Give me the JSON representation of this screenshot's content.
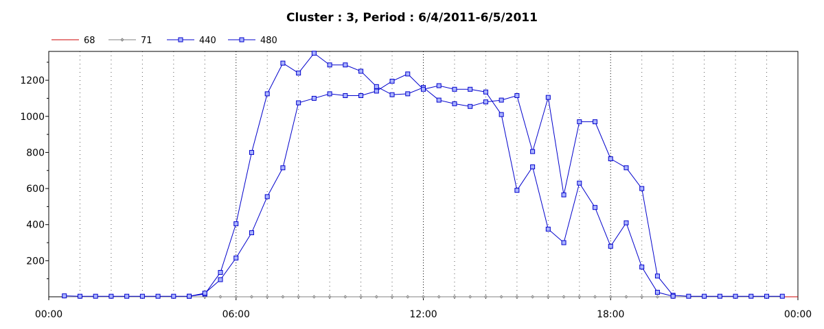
{
  "chart_data": {
    "type": "line",
    "title": "Cluster : 3, Period : 6/4/2011-6/5/2011",
    "xlabel": "",
    "ylabel": "",
    "x_tick_labels": [
      "00:00",
      "06:00",
      "12:00",
      "18:00",
      "00:00"
    ],
    "x_tick_hours": [
      0,
      6,
      12,
      18,
      24
    ],
    "x_range_hours": [
      0,
      24
    ],
    "y_ticks": [
      200,
      400,
      600,
      800,
      1000,
      1200
    ],
    "ylim": [
      0,
      1360
    ],
    "grid": "vertical dotted",
    "legend_position": "top-left",
    "series": [
      {
        "name": "68",
        "color": "#cc0000",
        "marker": "none",
        "x_hours": [
          0.5,
          24.0
        ],
        "values": [
          0,
          0
        ]
      },
      {
        "name": "71",
        "color": "#808080",
        "marker": "diamond",
        "x_hours": [
          0.5,
          1.0,
          1.5,
          2.0,
          2.5,
          3.0,
          3.5,
          4.0,
          4.5,
          5.0,
          5.5,
          6.0,
          6.5,
          7.0,
          7.5,
          8.0,
          8.5,
          9.0,
          9.5,
          10.0,
          10.5,
          11.0,
          11.5,
          12.0,
          12.5,
          13.0,
          13.5,
          14.0,
          14.5,
          15.0,
          15.5,
          16.0,
          16.5,
          17.0,
          17.5,
          18.0,
          18.5,
          19.0,
          19.5,
          20.0,
          20.5,
          21.0,
          21.5,
          22.0,
          22.5,
          23.0,
          23.5
        ],
        "values": [
          0,
          0,
          0,
          0,
          0,
          0,
          0,
          0,
          0,
          0,
          0,
          0,
          0,
          0,
          0,
          0,
          0,
          0,
          0,
          0,
          0,
          0,
          0,
          0,
          0,
          0,
          0,
          0,
          0,
          0,
          0,
          0,
          0,
          0,
          0,
          0,
          0,
          0,
          0,
          0,
          0,
          0,
          0,
          0,
          0,
          0,
          0
        ]
      },
      {
        "name": "440",
        "color": "#0000cc",
        "marker": "square",
        "x_hours": [
          0.5,
          1.0,
          1.5,
          2.0,
          2.5,
          3.0,
          3.5,
          4.0,
          4.5,
          5.0,
          5.5,
          6.0,
          6.5,
          7.0,
          7.5,
          8.0,
          8.5,
          9.0,
          9.5,
          10.0,
          10.5,
          11.0,
          11.5,
          12.0,
          12.5,
          13.0,
          13.5,
          14.0,
          14.5,
          15.0,
          15.5,
          16.0,
          16.5,
          17.0,
          17.5,
          18.0,
          18.5,
          19.0,
          19.5,
          20.0,
          20.5,
          21.0,
          21.5,
          22.0,
          22.5,
          23.0,
          23.5
        ],
        "values": [
          5,
          3,
          3,
          3,
          3,
          3,
          3,
          3,
          3,
          15,
          135,
          405,
          800,
          1125,
          1295,
          1240,
          1350,
          1285,
          1285,
          1250,
          1165,
          1120,
          1125,
          1160,
          1090,
          1070,
          1055,
          1080,
          1090,
          1115,
          805,
          1105,
          565,
          970,
          970,
          765,
          715,
          600,
          115,
          8,
          3,
          3,
          3,
          3,
          3,
          3,
          3
        ]
      },
      {
        "name": "480",
        "color": "#0000cc",
        "marker": "square",
        "x_hours": [
          4.5,
          5.0,
          5.5,
          6.0,
          6.5,
          7.0,
          7.5,
          8.0,
          8.5,
          9.0,
          9.5,
          10.0,
          10.5,
          11.0,
          11.5,
          12.0,
          12.5,
          13.0,
          13.5,
          14.0,
          14.5,
          15.0,
          15.5,
          16.0,
          16.5,
          17.0,
          17.5,
          18.0,
          18.5,
          19.0,
          19.5,
          20.0
        ],
        "values": [
          3,
          20,
          95,
          215,
          355,
          555,
          715,
          1075,
          1100,
          1125,
          1115,
          1115,
          1140,
          1195,
          1235,
          1150,
          1170,
          1150,
          1150,
          1135,
          1010,
          590,
          720,
          375,
          300,
          630,
          495,
          280,
          410,
          165,
          25,
          3
        ]
      }
    ]
  }
}
